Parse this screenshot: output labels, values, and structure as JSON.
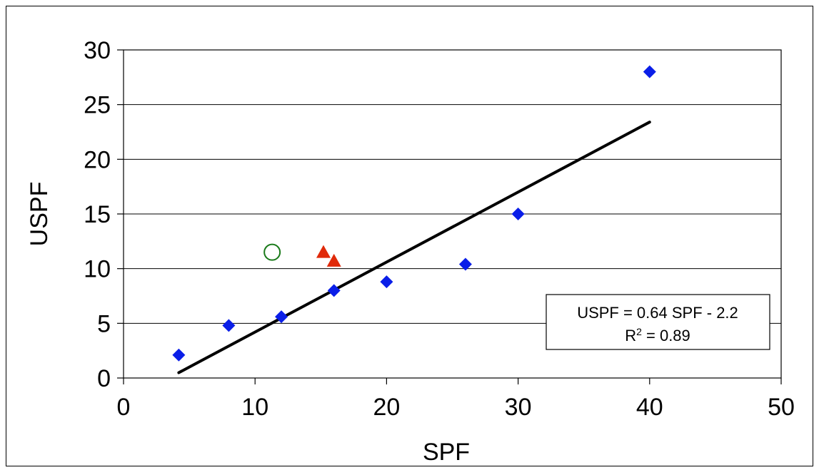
{
  "chart_data": {
    "type": "scatter",
    "title": "",
    "xlabel": "SPF",
    "ylabel": "USPF",
    "xlim": [
      0,
      50
    ],
    "ylim": [
      0,
      30
    ],
    "x_ticks": [
      0,
      10,
      20,
      30,
      40,
      50
    ],
    "y_ticks": [
      0,
      5,
      10,
      15,
      20,
      25,
      30
    ],
    "grid": "horizontal",
    "legend": "none",
    "series": [
      {
        "marker": "diamond",
        "color": "#0a1ee8",
        "points": [
          {
            "x": 4.2,
            "y": 2.1
          },
          {
            "x": 8.0,
            "y": 4.8
          },
          {
            "x": 12.0,
            "y": 5.6
          },
          {
            "x": 16.0,
            "y": 8.0
          },
          {
            "x": 20.0,
            "y": 8.8
          },
          {
            "x": 26.0,
            "y": 10.4
          },
          {
            "x": 30.0,
            "y": 15.0
          },
          {
            "x": 40.0,
            "y": 28.0
          }
        ]
      },
      {
        "marker": "triangle",
        "color": "#e02a0a",
        "points": [
          {
            "x": 15.2,
            "y": 11.5
          },
          {
            "x": 16.0,
            "y": 10.7
          }
        ]
      },
      {
        "marker": "open-circle",
        "color": "#1a7a1a",
        "points": [
          {
            "x": 11.3,
            "y": 11.5
          }
        ]
      }
    ],
    "trendline": {
      "slope": 0.64,
      "intercept": -2.2,
      "x_range": [
        4.2,
        40
      ],
      "color": "#000000"
    },
    "annotation": {
      "line1": "USPF = 0.64 SPF - 2.2",
      "line2_prefix": "R",
      "line2_sup": "2",
      "line2_suffix": " = 0.89"
    }
  }
}
